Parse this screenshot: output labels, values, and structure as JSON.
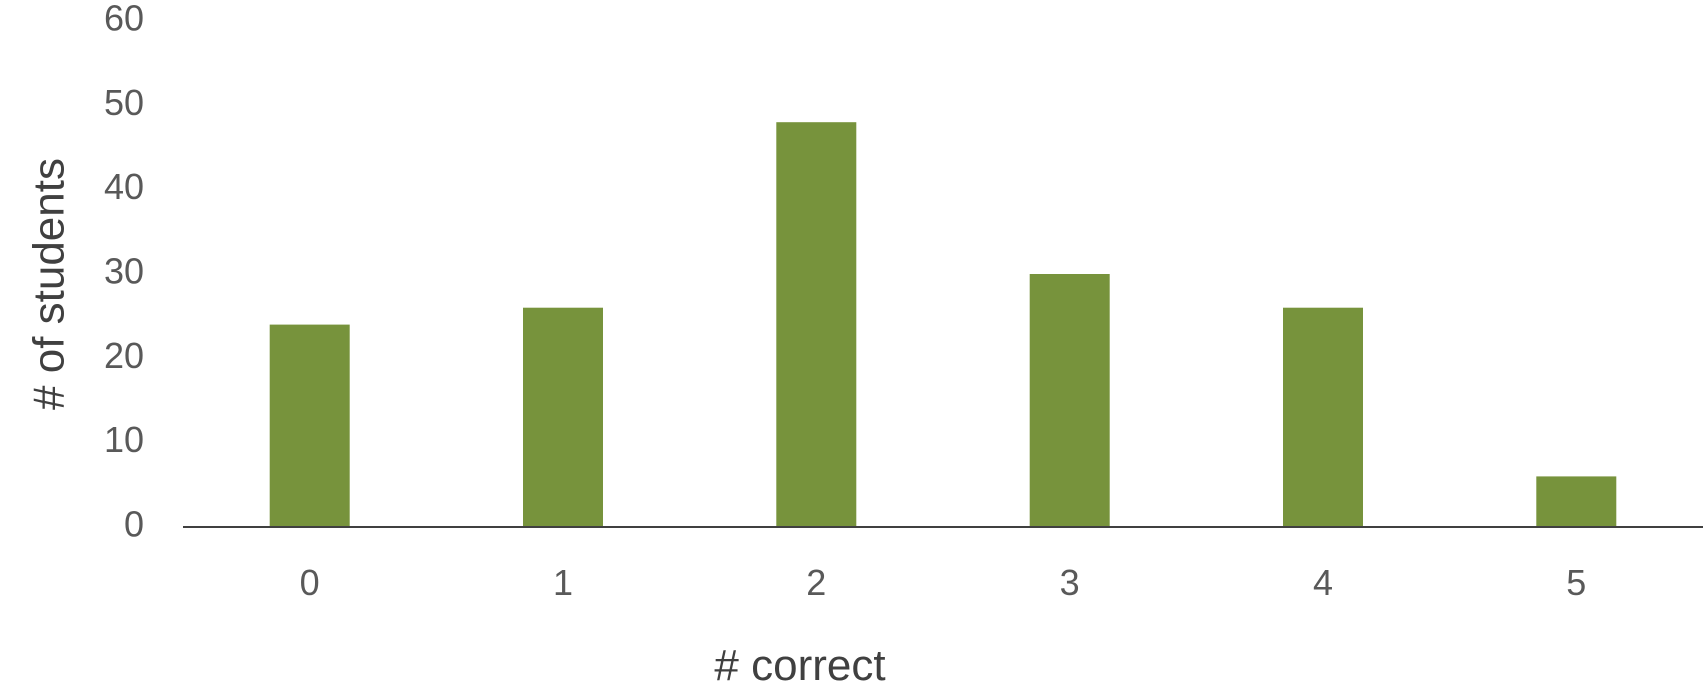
{
  "chart_data": {
    "type": "bar",
    "categories": [
      "0",
      "1",
      "2",
      "3",
      "4",
      "5"
    ],
    "values": [
      24,
      26,
      48,
      30,
      26,
      6
    ],
    "title": "",
    "xlabel": "# correct",
    "ylabel": "# of students",
    "ylim": [
      0,
      60
    ],
    "yticks": [
      "0",
      "10",
      "20",
      "30",
      "40",
      "50",
      "60"
    ],
    "grid": false,
    "legend": "none",
    "bar_color": "#77933c",
    "axis_color": "#404040"
  }
}
